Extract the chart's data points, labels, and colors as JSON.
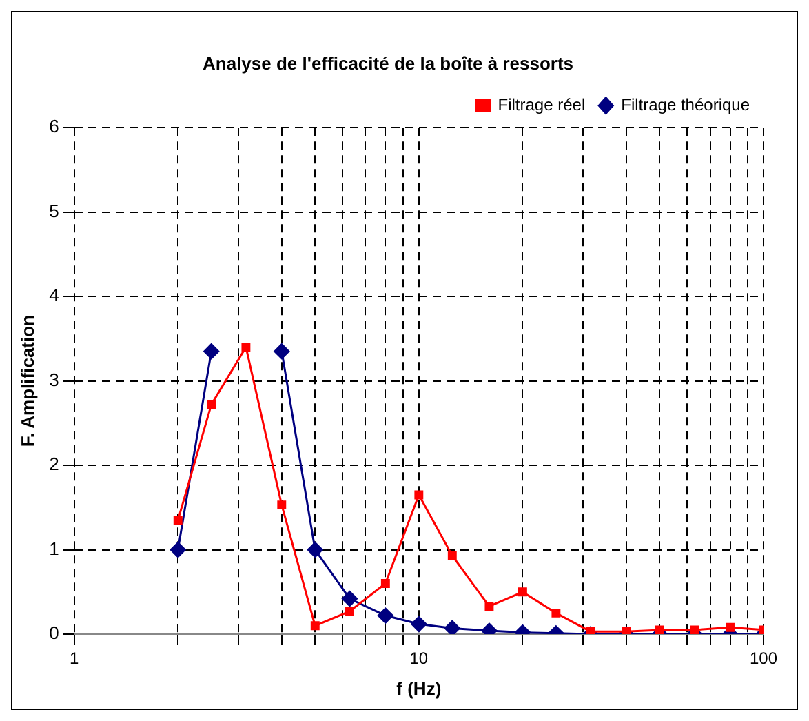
{
  "chart_data": {
    "type": "line",
    "title": "Analyse de l'efficacité de la boîte à ressorts",
    "xlabel": "f (Hz)",
    "ylabel": "F. Amplification",
    "log": "x",
    "x": [
      2,
      2.5,
      3.15,
      4,
      5,
      6.3,
      8,
      10,
      12.5,
      16,
      20,
      25,
      31.5,
      40,
      50,
      63,
      80,
      100
    ],
    "series": [
      {
        "name": "Filtrage théorique",
        "color": "#000080",
        "marker": "diamond",
        "values": [
          1,
          3.35,
          null,
          3.35,
          1,
          0.42,
          0.22,
          0.12,
          0.07,
          0.04,
          0.02,
          0.01,
          0,
          0,
          0,
          0,
          0,
          0
        ]
      },
      {
        "name": "Filtrage réel",
        "color": "#ff0000",
        "marker": "square",
        "values": [
          1.35,
          2.72,
          3.4,
          1.53,
          0.1,
          0.27,
          0.6,
          1.65,
          0.93,
          0.33,
          0.5,
          0.25,
          0.03,
          0.03,
          0.05,
          0.05,
          0.08,
          0.05
        ]
      }
    ],
    "xlim": [
      1,
      100
    ],
    "xticks": [
      1,
      {
        "value": 2,
        "label": null
      },
      {
        "value": 3,
        "label": null
      },
      {
        "value": 4,
        "label": null
      },
      {
        "value": 5,
        "label": null
      },
      {
        "value": 6,
        "label": null
      },
      {
        "value": 7,
        "label": null
      },
      {
        "value": 8,
        "label": null
      },
      {
        "value": 9,
        "label": null
      },
      10,
      {
        "value": 20,
        "label": null
      },
      {
        "value": 30,
        "label": null
      },
      {
        "value": 40,
        "label": null
      },
      {
        "value": 50,
        "label": null
      },
      {
        "value": 60,
        "label": null
      },
      {
        "value": 70,
        "label": null
      },
      {
        "value": 80,
        "label": null
      },
      {
        "value": 90,
        "label": null
      },
      100
    ],
    "ylim": [
      0,
      6
    ],
    "yticks": [
      0,
      1,
      2,
      3,
      4,
      5,
      6
    ],
    "grid": true,
    "line_style": "solid",
    "legend": "top right"
  }
}
